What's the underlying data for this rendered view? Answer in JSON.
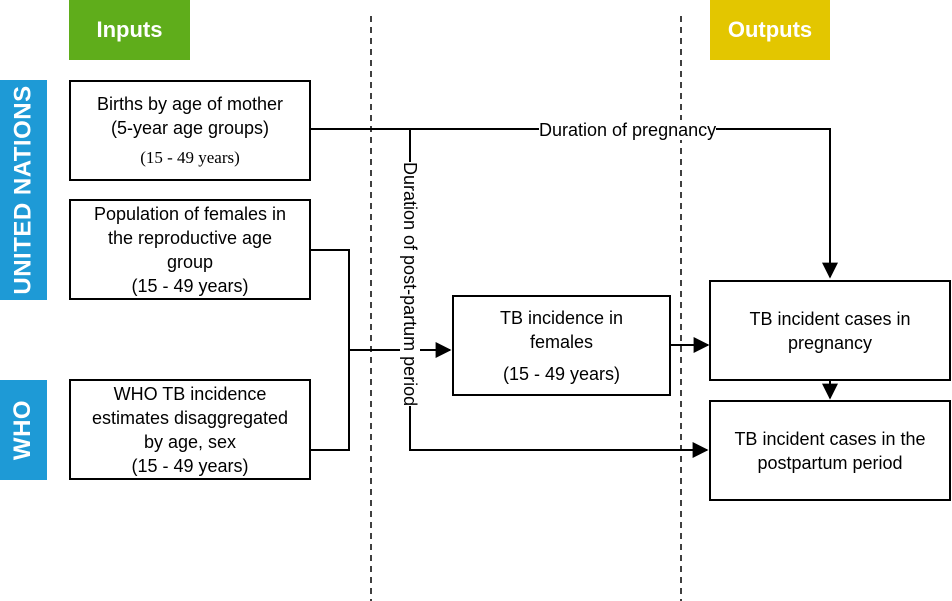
{
  "headers": {
    "inputs": "Inputs",
    "outputs": "Outputs",
    "inputs_color": "#5fad1b",
    "outputs_color": "#e3c600"
  },
  "sidebars": {
    "un": "UNITED NATIONS",
    "who": "WHO",
    "color": "#1e9ad6"
  },
  "boxes": {
    "births": {
      "line1": "Births by age of mother",
      "line2": "(5-year age groups)",
      "line3": "(15 - 49 years)"
    },
    "population": {
      "line1": "Population of females in",
      "line2": "the reproductive age",
      "line3": "group",
      "line4": "(15 - 49 years)"
    },
    "who_estimates": {
      "line1": "WHO TB incidence",
      "line2": "estimates disaggregated",
      "line3": "by age, sex",
      "line4": "(15 - 49 years)"
    },
    "tb_females": {
      "line1": "TB incidence in",
      "line2": "females",
      "line3": "(15 - 49 years)"
    },
    "tb_pregnancy": {
      "line1": "TB incident cases in",
      "line2": "pregnancy"
    },
    "tb_postpartum": {
      "line1": "TB incident cases in the",
      "line2": "postpartum period"
    }
  },
  "edge_labels": {
    "pregnancy": "Duration of pregnancy",
    "postpartum": "Duration of post-partum period"
  }
}
